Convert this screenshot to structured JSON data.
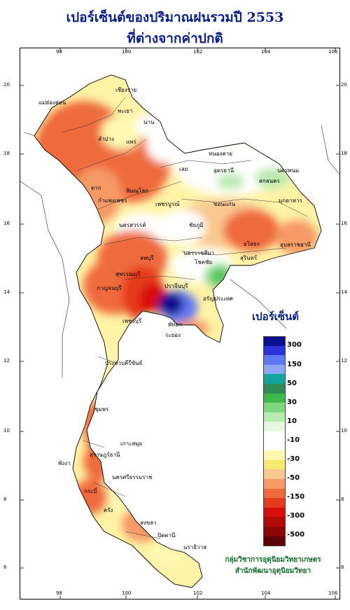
{
  "title": {
    "line1": "เปอร์เซ็นต์ของปริมาณฝนรวมปี 2553",
    "line2": "ที่ต่างจากค่าปกติ"
  },
  "axes": {
    "longitude_ticks": [
      "98",
      "100",
      "102",
      "104",
      "106"
    ],
    "latitude_ticks": [
      "20",
      "18",
      "16",
      "14",
      "12",
      "10",
      "8",
      "6"
    ]
  },
  "legend": {
    "title": "เปอร์เซ็นต์",
    "labels": [
      "300",
      "150",
      "50",
      "30",
      "10",
      "-10",
      "-30",
      "-50",
      "-150",
      "-300",
      "-500"
    ],
    "colors": [
      "#0b0e8f",
      "#2b33d8",
      "#5f78ee",
      "#8fa8f5",
      "#13a39a",
      "#2f8a5a",
      "#3fb84a",
      "#7fd87f",
      "#b9ecb0",
      "#e6f8e0",
      "#ffffff",
      "#ffffff",
      "#fff8b0",
      "#f7e870",
      "#f9c890",
      "#f79a66",
      "#ef6b3c",
      "#e63a1c",
      "#d80e0e",
      "#b50a0a",
      "#8c0606",
      "#5e0202"
    ]
  },
  "credits": {
    "line1": "กลุ่มวิชาการอุตุนิยมวิทยาเกษตร",
    "line2": "สำนักพัฒนาอุตุนิยมวิทยา"
  },
  "places": [
    {
      "name": "เชียงราย",
      "key": "chiangrai"
    },
    {
      "name": "แม่ฮ่องสอน",
      "key": "maehongson"
    },
    {
      "name": "พะเยา",
      "key": "phayao"
    },
    {
      "name": "ลำปาง",
      "key": "lampang"
    },
    {
      "name": "น่าน",
      "key": "nan"
    },
    {
      "name": "แพร่",
      "key": "phrae"
    },
    {
      "name": "ตาก",
      "key": "tak"
    },
    {
      "name": "หนองคาย",
      "key": "nongkhai"
    },
    {
      "name": "อุดรธานี",
      "key": "udon"
    },
    {
      "name": "สกลนคร",
      "key": "sakon"
    },
    {
      "name": "นครพนม",
      "key": "nakhonphanom"
    },
    {
      "name": "มุกดาหาร",
      "key": "mukdahan"
    },
    {
      "name": "เลย",
      "key": "loei"
    },
    {
      "name": "ขอนแก่น",
      "key": "khonkaen"
    },
    {
      "name": "พิษณุโลก",
      "key": "phitsanulok"
    },
    {
      "name": "เพชรบูรณ์",
      "key": "phetchabun"
    },
    {
      "name": "กำแพงเพชร",
      "key": "kamphaeng"
    },
    {
      "name": "นครสวรรค์",
      "key": "nakhonsawan"
    },
    {
      "name": "ชัยภูมิ",
      "key": "chaiyaphum"
    },
    {
      "name": "อุบลราชธานี",
      "key": "ubon"
    },
    {
      "name": "ยโสธร",
      "key": "yasothon"
    },
    {
      "name": "สุรินทร์",
      "key": "surin"
    },
    {
      "name": "ลพบุรี",
      "key": "lopburi"
    },
    {
      "name": "นครราชสีมา",
      "key": "korat"
    },
    {
      "name": "โชคชัย",
      "key": "chokchai"
    },
    {
      "name": "สุพรรณบุรี",
      "key": "suphan"
    },
    {
      "name": "กาญจนบุรี",
      "key": "kanchanaburi"
    },
    {
      "name": "ปราจีนบุรี",
      "key": "prachin"
    },
    {
      "name": "อรัญประเทศ",
      "key": "aranya"
    },
    {
      "name": "เพชรบุรี",
      "key": "phetchaburi"
    },
    {
      "name": "พัทยา",
      "key": "pattaya"
    },
    {
      "name": "ระยอง",
      "key": "rayong"
    },
    {
      "name": "ประจวบคีรีขันธ์",
      "key": "prachuap"
    },
    {
      "name": "ชุมพร",
      "key": "chumphon"
    },
    {
      "name": "สุราษฎร์ธานี",
      "key": "suratthani"
    },
    {
      "name": "เกาะสมุย",
      "key": "samui"
    },
    {
      "name": "พังงา",
      "key": "phangnga"
    },
    {
      "name": "นครศรีธรรมราช",
      "key": "nakhonsi"
    },
    {
      "name": "กระบี่",
      "key": "krabi"
    },
    {
      "name": "ตรัง",
      "key": "trang"
    },
    {
      "name": "สงขลา",
      "key": "songkhla"
    },
    {
      "name": "ปัตตานี",
      "key": "pattani"
    },
    {
      "name": "นราธิวาส",
      "key": "narathiwat"
    }
  ]
}
